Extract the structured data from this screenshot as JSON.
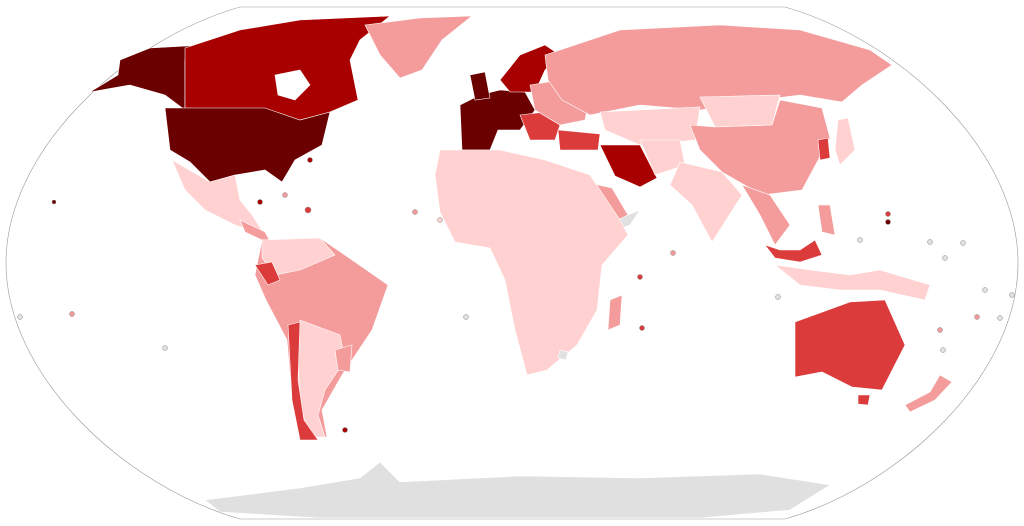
{
  "map": {
    "projection": "Robinson",
    "type": "choropleth",
    "colors": {
      "level_6": "#6b0000",
      "level_5": "#a80000",
      "level_4": "#db3b3b",
      "level_3": "#f49c9c",
      "level_2": "#ffd1d1",
      "no_data": "#e0e0e0",
      "ocean": "#ffffff",
      "border": "#ffffff"
    }
  }
}
